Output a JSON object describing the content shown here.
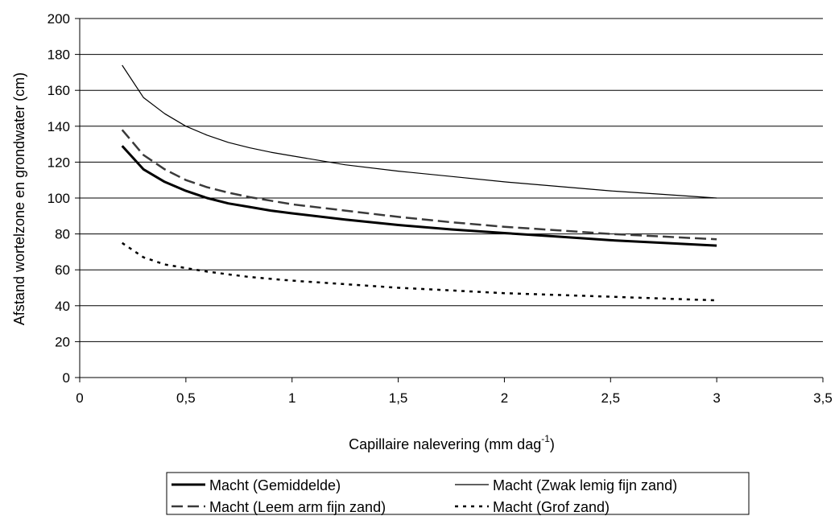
{
  "chart_data": {
    "type": "line",
    "xlabel": "Capillaire nalevering (mm dag",
    "xlabel_sup": "-1",
    "xlabel_close": ")",
    "ylabel": "Afstand wortelzone en grondwater (cm)",
    "xlim": [
      0,
      3.5
    ],
    "ylim": [
      0,
      200
    ],
    "xticks": [
      0,
      0.5,
      1,
      1.5,
      2,
      2.5,
      3,
      3.5
    ],
    "xtick_labels": [
      "0",
      "0,5",
      "1",
      "1,5",
      "2",
      "2,5",
      "3",
      "3,5"
    ],
    "yticks": [
      0,
      20,
      40,
      60,
      80,
      100,
      120,
      140,
      160,
      180,
      200
    ],
    "ytick_labels": [
      "0",
      "20",
      "40",
      "60",
      "80",
      "100",
      "120",
      "140",
      "160",
      "180",
      "200"
    ],
    "grid": "horizontal",
    "legend_position": "bottom",
    "x": [
      0.2,
      0.3,
      0.4,
      0.5,
      0.6,
      0.7,
      0.8,
      0.9,
      1.0,
      1.25,
      1.5,
      1.75,
      2.0,
      2.25,
      2.5,
      2.75,
      3.0
    ],
    "series": [
      {
        "name": "Macht (Gemiddelde)",
        "style": "solid-thick",
        "color": "#000000",
        "values": [
          129,
          116,
          109,
          104,
          100,
          97,
          95,
          93,
          91.5,
          88,
          85,
          82.5,
          80.5,
          78.5,
          76.5,
          75,
          73.5
        ]
      },
      {
        "name": "Macht (Zwak lemig fijn zand)",
        "style": "solid-thin",
        "color": "#000000",
        "values": [
          174,
          156,
          147,
          140,
          135,
          131,
          128,
          125.5,
          123.5,
          118.5,
          115,
          112,
          109,
          106.5,
          104,
          102,
          100
        ]
      },
      {
        "name": "Macht (Leem arm fijn zand)",
        "style": "dashed",
        "color": "#3a3a3a",
        "values": [
          138,
          124,
          116,
          110,
          106,
          103,
          100.5,
          98.5,
          96.5,
          93,
          89.5,
          86.5,
          84,
          82,
          80,
          78.5,
          77
        ]
      },
      {
        "name": "Macht (Grof zand)",
        "style": "dotted",
        "color": "#000000",
        "values": [
          75,
          67,
          63,
          61,
          59,
          57.5,
          56,
          55,
          54,
          52,
          50,
          48.5,
          47,
          46,
          45,
          44,
          43
        ]
      }
    ]
  }
}
